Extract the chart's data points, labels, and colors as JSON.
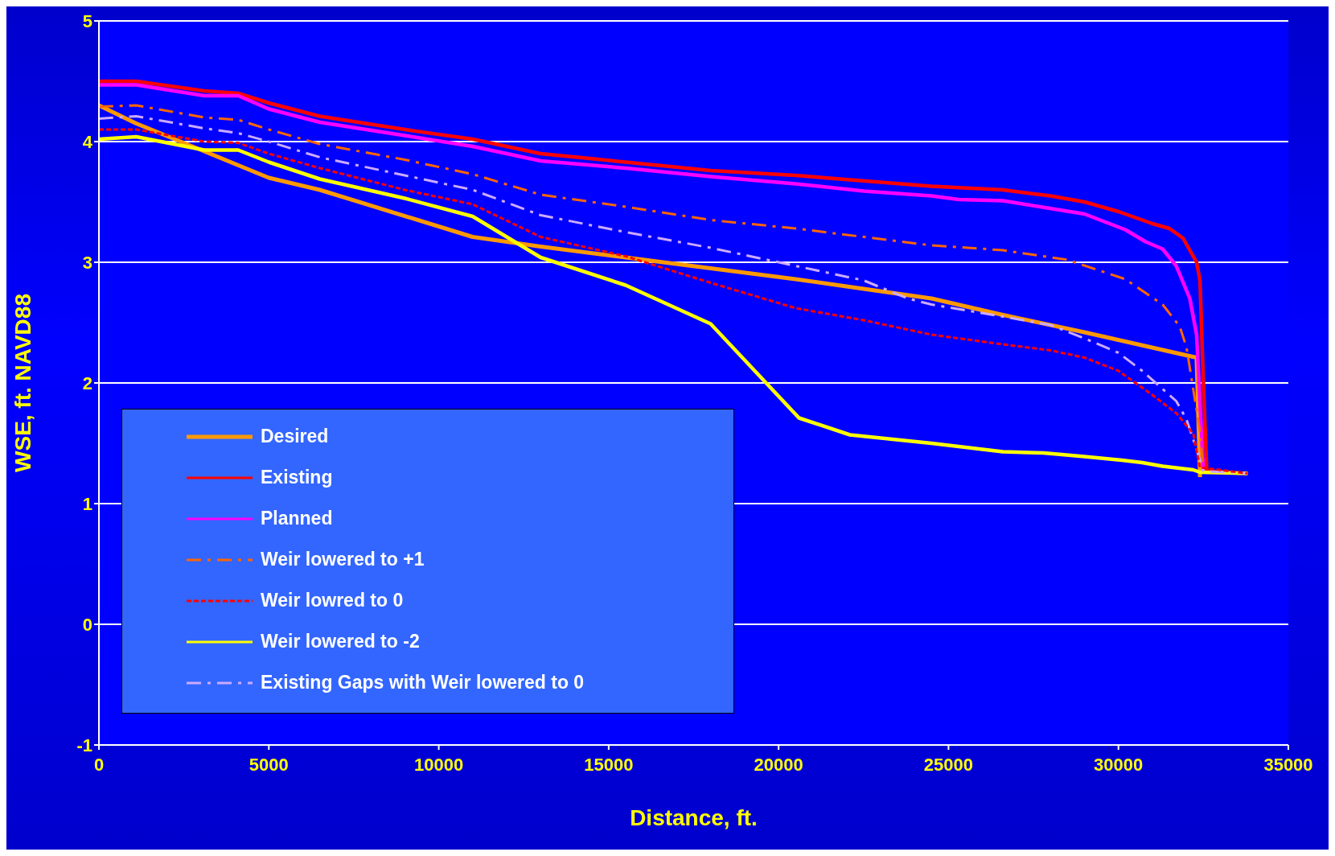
{
  "chart_data": {
    "type": "line",
    "xlabel": "Distance, ft.",
    "ylabel": "WSE, ft. NAVD88",
    "xlim": [
      0,
      35000
    ],
    "xticks": [
      0,
      5000,
      10000,
      15000,
      20000,
      25000,
      30000,
      35000
    ],
    "ylim": [
      -1,
      5
    ],
    "yticks": [
      -1,
      0,
      1,
      2,
      3,
      4,
      5
    ],
    "grid": "y",
    "legend": "bottom left",
    "marker": "none",
    "series": [
      {
        "name": "Desired",
        "color": "#ff9900",
        "line_style": "solid",
        "x": [
          0,
          1100,
          3100,
          5000,
          6500,
          11000,
          13000,
          15500,
          18000,
          20500,
          22000,
          24500,
          26500,
          29000,
          32300,
          32400
        ],
        "values": [
          4.3,
          4.15,
          3.92,
          3.7,
          3.6,
          3.21,
          3.13,
          3.04,
          2.95,
          2.86,
          2.8,
          2.7,
          2.57,
          2.42,
          2.21,
          1.22
        ]
      },
      {
        "name": "Existing",
        "color": "#ff0000",
        "line_style": "solid",
        "x": [
          0,
          1100,
          3100,
          4100,
          5000,
          6500,
          9000,
          11000,
          13000,
          15500,
          18000,
          20500,
          24500,
          26600,
          28000,
          29000,
          30000,
          31000,
          31500,
          31900,
          32300,
          32400,
          32500,
          32600,
          33800
        ],
        "values": [
          4.5,
          4.5,
          4.42,
          4.4,
          4.32,
          4.21,
          4.1,
          4.02,
          3.9,
          3.83,
          3.76,
          3.72,
          3.63,
          3.6,
          3.55,
          3.5,
          3.42,
          3.32,
          3.28,
          3.2,
          3.0,
          2.85,
          2.0,
          1.27,
          1.25
        ]
      },
      {
        "name": "Planned",
        "color": "#ff00ff",
        "line_style": "solid",
        "x": [
          0,
          1100,
          3100,
          4100,
          5000,
          6500,
          9000,
          11000,
          13000,
          15500,
          18000,
          20500,
          22500,
          24500,
          25300,
          26600,
          29000,
          30200,
          30800,
          31300,
          31700,
          32100,
          32300,
          32500
        ],
        "values": [
          4.47,
          4.47,
          4.38,
          4.38,
          4.27,
          4.16,
          4.05,
          3.96,
          3.84,
          3.78,
          3.71,
          3.65,
          3.59,
          3.55,
          3.52,
          3.51,
          3.4,
          3.27,
          3.17,
          3.11,
          2.97,
          2.7,
          2.4,
          1.27
        ]
      },
      {
        "name": "Weir lowered to +1",
        "color": "#ff6600",
        "line_style": "dashed",
        "x": [
          0,
          1100,
          3100,
          4100,
          5000,
          6500,
          9000,
          11000,
          13000,
          15500,
          18000,
          20500,
          24500,
          26600,
          28500,
          30200,
          31300,
          31800,
          32000,
          32400,
          32500,
          33800
        ],
        "values": [
          4.29,
          4.3,
          4.2,
          4.18,
          4.1,
          3.98,
          3.85,
          3.73,
          3.56,
          3.46,
          3.35,
          3.28,
          3.14,
          3.1,
          3.02,
          2.86,
          2.65,
          2.47,
          2.3,
          1.6,
          1.27,
          1.25
        ]
      },
      {
        "name": "Weir lowred to 0",
        "color": "#ff0000",
        "line_style": "dotted",
        "x": [
          0,
          1100,
          3100,
          4100,
          5000,
          6500,
          9000,
          11000,
          13000,
          15500,
          18000,
          20500,
          22500,
          24500,
          26600,
          28000,
          29000,
          30000,
          31000,
          31700,
          32200,
          32400,
          33800
        ],
        "values": [
          4.1,
          4.1,
          4.0,
          3.99,
          3.9,
          3.78,
          3.6,
          3.48,
          3.21,
          3.05,
          2.83,
          2.62,
          2.52,
          2.4,
          2.32,
          2.27,
          2.21,
          2.1,
          1.9,
          1.75,
          1.58,
          1.3,
          1.25
        ]
      },
      {
        "name": "Weir lowered to -2",
        "color": "#ffff00",
        "line_style": "solid",
        "x": [
          0,
          1100,
          3100,
          4100,
          5000,
          6500,
          9000,
          11000,
          13000,
          15500,
          18000,
          20600,
          22100,
          24500,
          26600,
          27800,
          29000,
          30100,
          30700,
          31300,
          32200,
          32400,
          33800
        ],
        "values": [
          4.02,
          4.04,
          3.93,
          3.93,
          3.83,
          3.69,
          3.53,
          3.38,
          3.04,
          2.81,
          2.49,
          1.71,
          1.57,
          1.5,
          1.43,
          1.42,
          1.39,
          1.36,
          1.34,
          1.31,
          1.28,
          1.26,
          1.25
        ]
      },
      {
        "name": "Existing Gaps with Weir lowered to 0",
        "color": "#ccaaff",
        "line_style": "dashed",
        "x": [
          0,
          1100,
          3100,
          4100,
          5000,
          6500,
          9000,
          11000,
          13000,
          15500,
          18000,
          20500,
          22500,
          23800,
          24500,
          26600,
          28000,
          29000,
          30000,
          30700,
          31700,
          32000,
          32300,
          32500,
          33800
        ],
        "values": [
          4.19,
          4.21,
          4.11,
          4.07,
          4.0,
          3.87,
          3.72,
          3.6,
          3.39,
          3.25,
          3.12,
          2.97,
          2.85,
          2.7,
          2.65,
          2.55,
          2.48,
          2.37,
          2.25,
          2.1,
          1.85,
          1.7,
          1.45,
          1.27,
          1.25
        ]
      }
    ]
  }
}
